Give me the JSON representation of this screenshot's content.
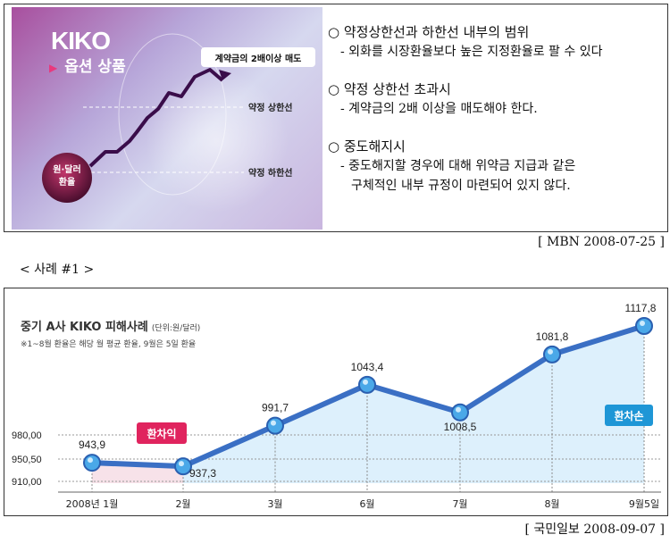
{
  "promo": {
    "brand": "KIKO",
    "subtitle": "옵션 상품",
    "callout": "계약금의 2배이상 매도",
    "upper_label": "약정 상한선",
    "lower_label": "약정 하한선",
    "rate_label_1": "원·달러",
    "rate_label_2": "환율"
  },
  "rules": [
    {
      "head": "○ 약정상한선과 하한선 내부의 범위",
      "body": "- 외화를 시장환율보다 높은 지정환율로 팔 수 있다",
      "cont": ""
    },
    {
      "head": "○ 약정 상한선 초과시",
      "body": "- 계약금의 2배 이상을 매도해야 한다.",
      "cont": ""
    },
    {
      "head": "○ 중도해지시",
      "body": "- 중도해지할 경우에 대해 위약금 지급과 같은",
      "cont": "구체적인 내부 규정이 마련되어 있지 않다."
    }
  ],
  "source_1": "[ MBN 2008-07-25 ]",
  "case_label": "< 사례 #1 >",
  "chart_header": {
    "title": "중기 A사 KIKO 피해사례",
    "unit": "(단위:원/달러)",
    "note": "※1~8월 환율은 해당 월 평균 환율, 9월은 5일 환율",
    "gain_label": "환차익",
    "loss_label": "환차손"
  },
  "chart_data": {
    "type": "line",
    "title": "중기 A사 KIKO 피해사례",
    "categories": [
      "2008년 1월",
      "2월",
      "3월",
      "6월",
      "7월",
      "8월",
      "9월5일"
    ],
    "values": [
      943.9,
      937.3,
      991.7,
      1043.4,
      1008.5,
      1081.8,
      1117.8
    ],
    "value_labels": [
      "943,9",
      "937,3",
      "991,7",
      "1043,4",
      "1008,5",
      "1081,8",
      "1117,8"
    ],
    "y_ticks": [
      910,
      950.5,
      980
    ],
    "y_tick_labels": [
      "910,00",
      "950,50",
      "980,00"
    ],
    "ylim": [
      910,
      1120
    ],
    "colors": {
      "line": "#3a6fc4",
      "marker": "#4aa8e8",
      "fill": "#d4ecfb",
      "gain": "#e0245e",
      "loss": "#1e96d6"
    }
  },
  "source_2": "[ 국민일보 2008-09-07 ]"
}
